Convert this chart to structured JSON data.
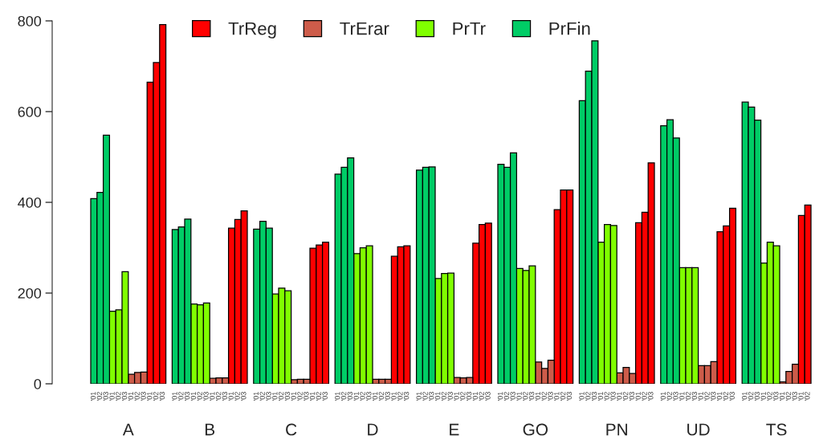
{
  "chart_data": {
    "type": "bar",
    "categories": [
      "'01",
      "'02",
      "'03",
      "'01",
      "'02",
      "'03",
      "'01",
      "'02",
      "'03",
      "'01",
      "'02",
      "'03",
      null,
      "'01",
      "'02",
      "'03",
      "'01",
      "'02",
      "'03",
      "'01",
      "'02",
      "'03",
      "'01",
      "'02",
      "'03",
      null,
      "'01",
      "'02",
      "'03",
      "'01",
      "'02",
      "'03",
      "'01",
      "'02",
      "'03",
      "'01",
      "'02",
      "'03",
      null,
      "'01",
      "'02",
      "'03",
      "'01",
      "'02",
      "'03",
      "'01",
      "'02",
      "'03",
      "'01",
      "'02",
      "'03",
      null,
      "'01",
      "'02",
      "'03",
      "'01",
      "'02",
      "'03",
      "'01",
      "'02",
      "'03",
      "'01",
      "'02",
      "'03",
      null,
      "'01",
      "'02",
      "'03",
      "'01",
      "'02",
      "'03",
      "'01",
      "'02",
      "'03",
      "'01",
      "'02",
      "'03",
      null,
      "'01",
      "'02",
      "'03",
      "'01",
      "'02",
      "'03",
      "'01",
      "'02",
      "'03",
      "'01",
      "'02",
      "'03",
      null,
      "'01",
      "'02",
      "'03",
      "'01",
      "'02",
      "'03",
      "'01",
      "'02",
      "'03",
      "'01",
      "'02",
      "'03",
      null,
      "'01",
      "'02",
      "'03",
      "'01",
      "'02",
      "'03",
      "'01",
      "'02",
      "'03",
      "'01",
      "'02"
    ],
    "series": [
      {
        "name": "TrReg",
        "color": "#ff0000",
        "values": [
          null,
          null,
          null,
          null,
          null,
          null,
          null,
          null,
          null,
          665,
          708,
          792,
          null,
          null,
          null,
          null,
          null,
          null,
          null,
          null,
          null,
          null,
          343,
          362,
          381,
          null,
          null,
          null,
          null,
          null,
          null,
          null,
          null,
          null,
          null,
          299,
          306,
          312,
          null,
          null,
          null,
          null,
          null,
          null,
          null,
          null,
          null,
          null,
          281,
          302,
          304,
          null,
          null,
          null,
          null,
          null,
          null,
          null,
          null,
          null,
          null,
          310,
          351,
          354,
          null,
          null,
          null,
          null,
          null,
          null,
          null,
          null,
          null,
          null,
          384,
          427,
          427,
          null,
          null,
          null,
          null,
          null,
          null,
          null,
          null,
          null,
          null,
          355,
          378,
          487,
          null,
          null,
          null,
          null,
          null,
          null,
          null,
          null,
          null,
          null,
          335,
          348,
          387,
          null,
          null,
          null,
          null,
          null,
          null,
          null,
          null,
          null,
          null,
          371,
          394
        ]
      },
      {
        "name": "TrErar",
        "color": "#cd5c4a",
        "values": [
          null,
          null,
          null,
          null,
          null,
          null,
          21,
          25,
          26,
          null,
          null,
          null,
          null,
          null,
          null,
          null,
          null,
          null,
          null,
          12,
          13,
          13,
          null,
          null,
          null,
          null,
          null,
          null,
          null,
          null,
          null,
          null,
          9,
          10,
          10,
          null,
          null,
          null,
          null,
          null,
          null,
          null,
          null,
          null,
          null,
          10,
          10,
          10,
          null,
          null,
          null,
          null,
          null,
          null,
          null,
          null,
          null,
          null,
          14,
          13,
          14,
          null,
          null,
          null,
          null,
          null,
          null,
          null,
          null,
          null,
          null,
          48,
          34,
          52,
          null,
          null,
          null,
          null,
          null,
          null,
          null,
          null,
          null,
          null,
          24,
          36,
          23,
          null,
          null,
          null,
          null,
          null,
          null,
          null,
          null,
          null,
          null,
          40,
          40,
          49,
          null,
          null,
          null,
          null,
          null,
          null,
          null,
          null,
          null,
          null,
          4,
          27,
          43,
          null,
          null
        ]
      },
      {
        "name": "PrTr",
        "color": "#80ff00",
        "values": [
          null,
          null,
          null,
          160,
          163,
          247,
          null,
          null,
          null,
          null,
          null,
          null,
          null,
          null,
          null,
          null,
          176,
          174,
          178,
          null,
          null,
          null,
          null,
          null,
          null,
          null,
          null,
          null,
          null,
          198,
          211,
          205,
          null,
          null,
          null,
          null,
          null,
          null,
          null,
          null,
          null,
          null,
          287,
          300,
          304,
          null,
          null,
          null,
          null,
          null,
          null,
          null,
          null,
          null,
          null,
          232,
          243,
          244,
          null,
          null,
          null,
          null,
          null,
          null,
          null,
          null,
          null,
          null,
          254,
          250,
          260,
          null,
          null,
          null,
          null,
          null,
          null,
          null,
          null,
          null,
          null,
          312,
          351,
          349,
          null,
          null,
          null,
          null,
          null,
          null,
          null,
          null,
          null,
          null,
          256,
          256,
          256,
          null,
          null,
          null,
          null,
          null,
          null,
          null,
          null,
          null,
          null,
          266,
          312,
          304,
          null,
          null,
          null,
          null,
          null
        ]
      },
      {
        "name": "PrFin",
        "color": "#00cc66",
        "values": [
          408,
          422,
          548,
          null,
          null,
          null,
          null,
          null,
          null,
          null,
          null,
          null,
          null,
          340,
          346,
          363,
          null,
          null,
          null,
          null,
          null,
          null,
          null,
          null,
          null,
          null,
          341,
          358,
          343,
          null,
          null,
          null,
          null,
          null,
          null,
          null,
          null,
          null,
          null,
          462,
          477,
          498,
          null,
          null,
          null,
          null,
          null,
          null,
          null,
          null,
          null,
          null,
          471,
          477,
          478,
          null,
          null,
          null,
          null,
          null,
          null,
          null,
          null,
          null,
          null,
          484,
          477,
          509,
          null,
          null,
          null,
          null,
          null,
          null,
          null,
          null,
          null,
          null,
          624,
          689,
          756,
          null,
          null,
          null,
          null,
          null,
          null,
          null,
          null,
          null,
          null,
          569,
          582,
          542,
          null,
          null,
          null,
          null,
          null,
          null,
          null,
          null,
          null,
          null,
          621,
          610,
          581,
          null,
          null,
          null,
          null,
          null,
          null,
          null,
          null
        ]
      }
    ],
    "annotations": [
      "A",
      "B",
      "C",
      "D",
      "E",
      "GO",
      "PN",
      "UD",
      "TS"
    ],
    "ylim": [
      0,
      800
    ],
    "yticks": [
      0,
      200,
      400,
      600,
      800
    ],
    "grid": false,
    "legend": "top"
  }
}
